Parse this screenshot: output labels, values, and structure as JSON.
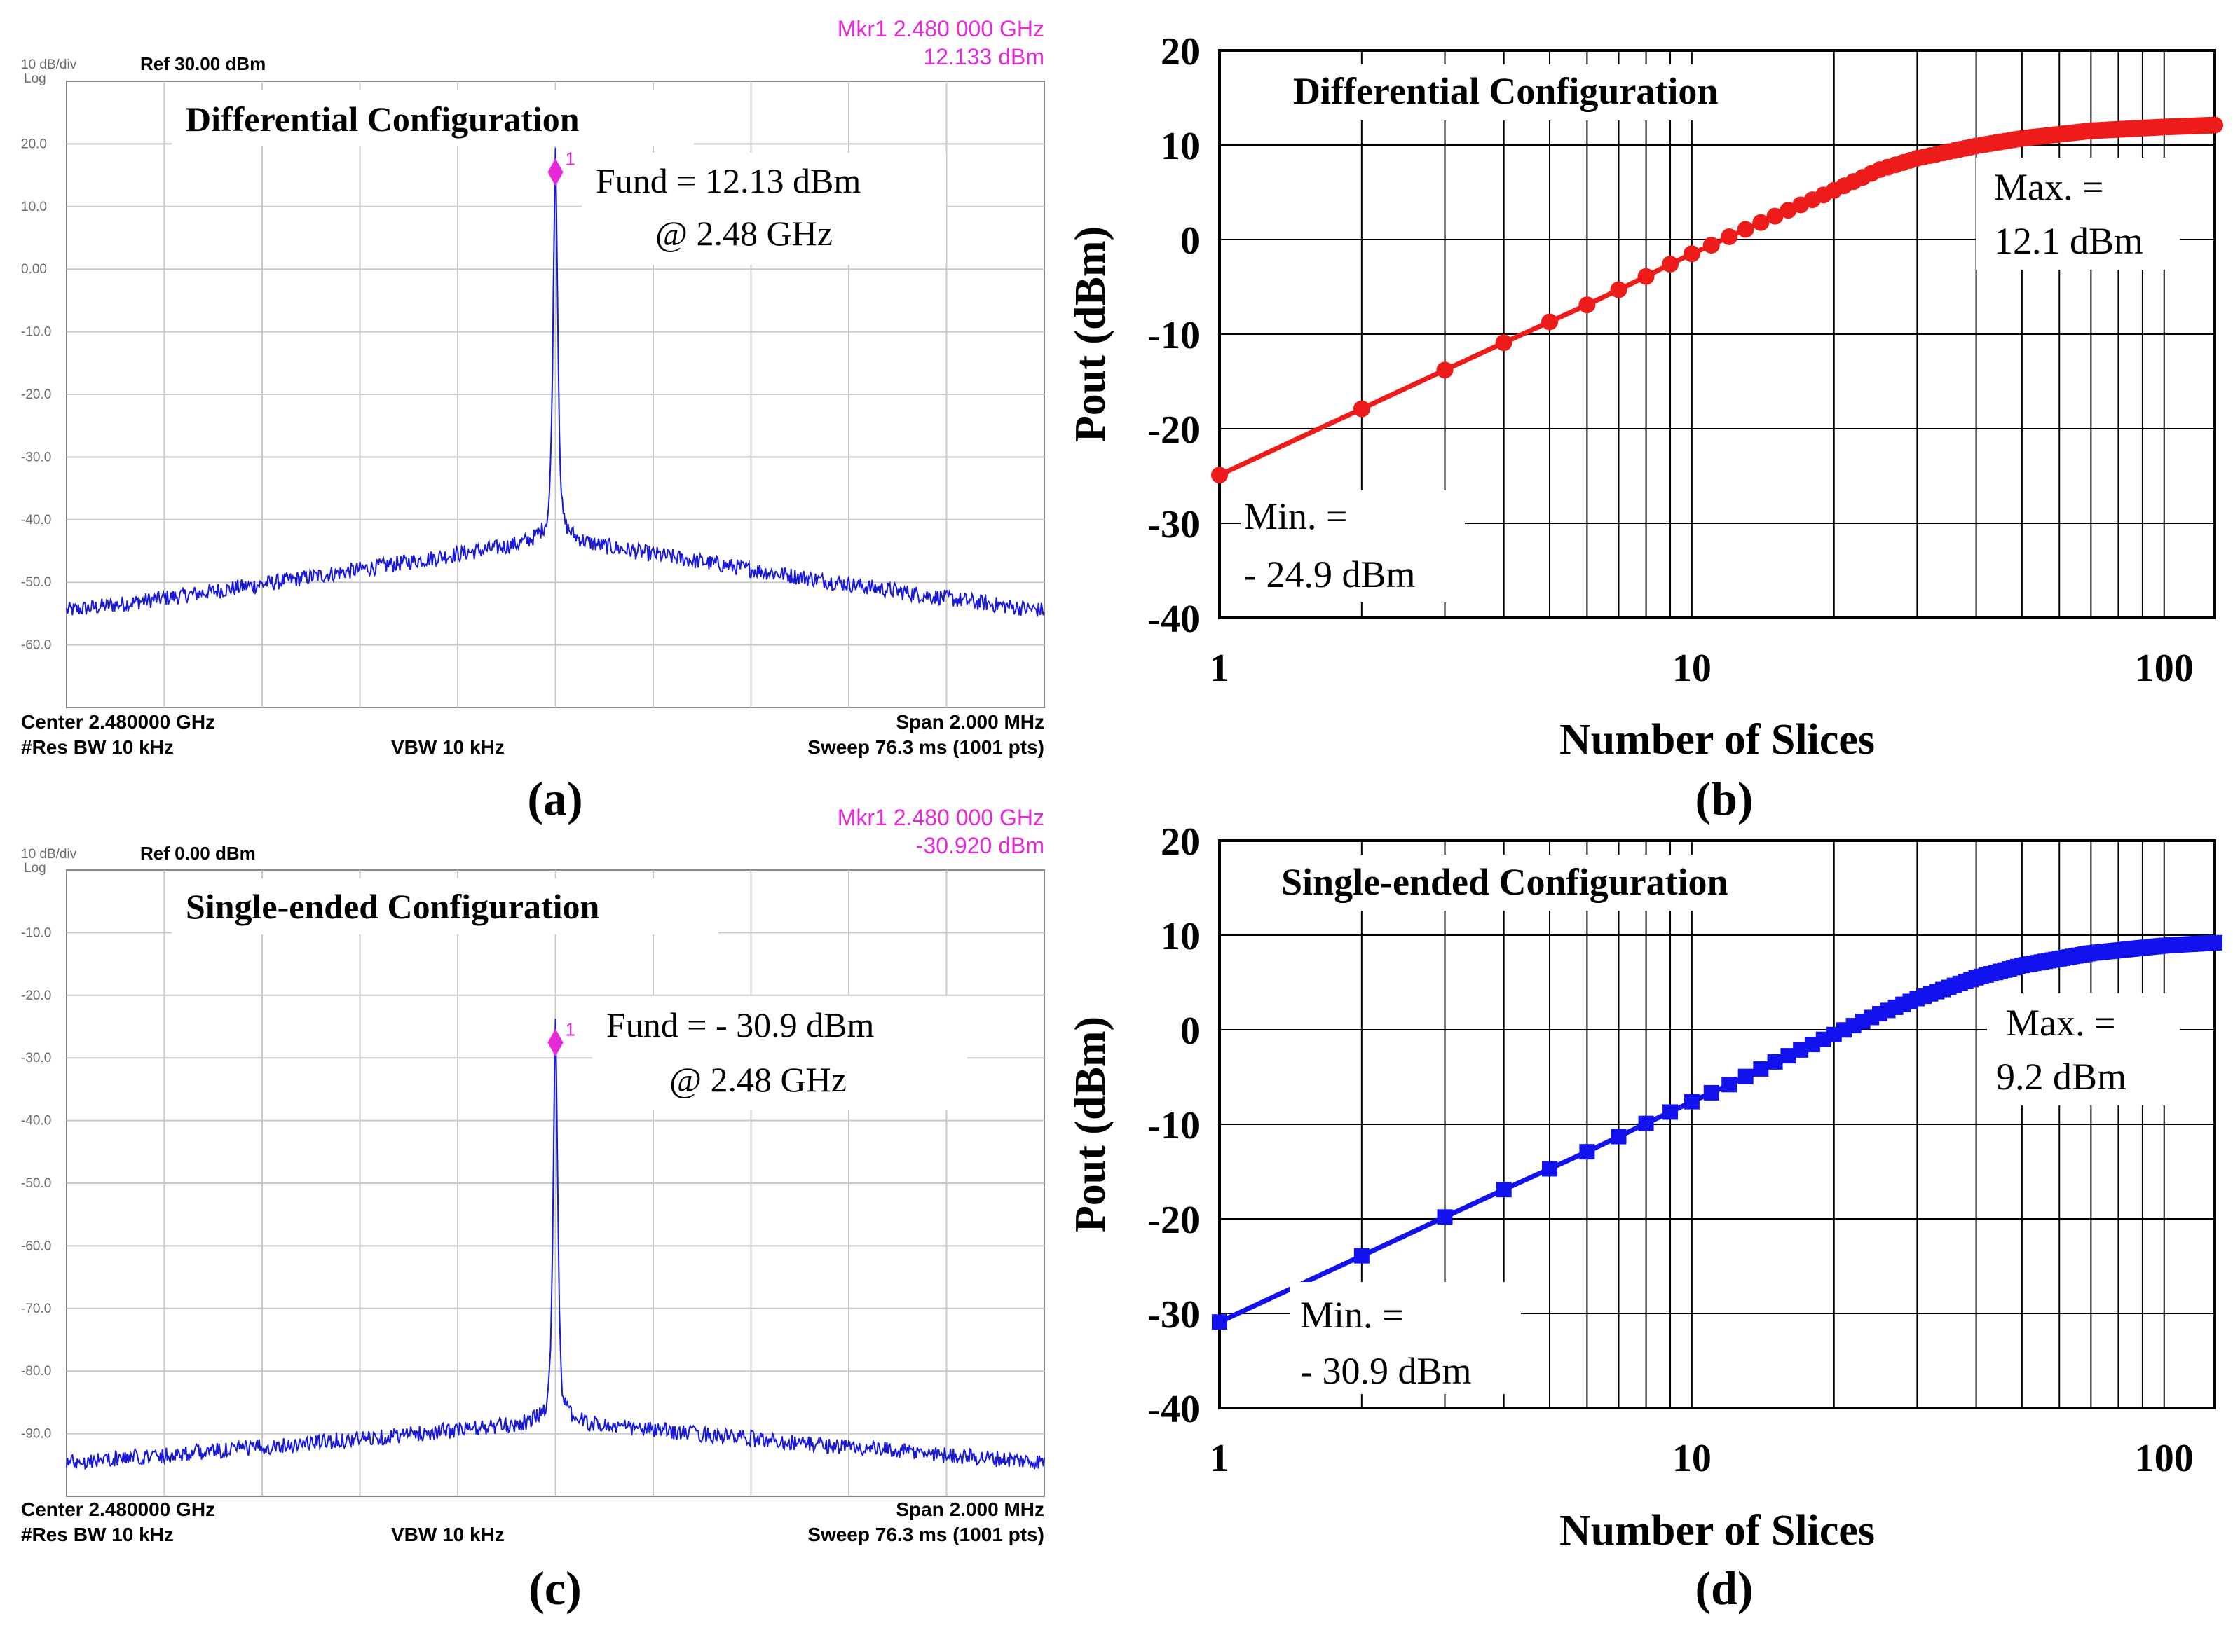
{
  "figure": {
    "colors": {
      "trace": "#1a1ad6",
      "marker": "#e628d6",
      "red_series": "#ee1b1b",
      "blue_series": "#1212ee",
      "grid": "#c8c8c8",
      "plot_grid": "#000000"
    }
  },
  "chart_data": [
    {
      "panel": "(a)",
      "type": "line",
      "title": "Differential Configuration",
      "scale_label": "10 dB/div",
      "log_label": "Log",
      "ref_label": "Ref 30.00 dBm",
      "marker_line1": "Mkr1 2.480 000 GHz",
      "marker_line2": "12.133 dBm",
      "marker_id": "1",
      "fund_line1": "Fund = 12.13 dBm",
      "fund_line2": "@ 2.48 GHz",
      "y_ticks": [
        "20.0",
        "10.0",
        "0.00",
        "-10.0",
        "-20.0",
        "-30.0",
        "-40.0",
        "-50.0",
        "-60.0"
      ],
      "ylim": [
        -70,
        30
      ],
      "center_label": "Center 2.480000 GHz",
      "span_label": "Span 2.000 MHz",
      "rbw_label": "#Res BW 10 kHz",
      "vbw_label": "VBW 10 kHz",
      "sweep_label": "Sweep  76.3 ms (1001 pts)",
      "peak_dbm": 12.133,
      "edge_left_dbm": -54.5,
      "edge_right_dbm": -54.5,
      "near_peak_dbm": -43
    },
    {
      "panel": "(b)",
      "type": "line",
      "title": "Differential Configuration",
      "xlabel": "Number of Slices",
      "ylabel": "Pout (dBm)",
      "x_ticks": [
        "1",
        "10",
        "100"
      ],
      "y_ticks": [
        "20",
        "10",
        "0",
        "-10",
        "-20",
        "-30",
        "-40"
      ],
      "xlim": [
        1,
        128
      ],
      "ylim": [
        -40,
        20
      ],
      "min_line1": "Min. =",
      "min_line2": "-  24.9 dBm",
      "max_line1": "Max. =",
      "max_line2": "12.1 dBm",
      "marker": "circle",
      "series_color": "#ee1b1b",
      "min_dbm": -24.9,
      "max_dbm": 12.1,
      "anchors_x": [
        1,
        2,
        3,
        4,
        5,
        6,
        7,
        8,
        9,
        10,
        11,
        12,
        14,
        16,
        20,
        25,
        30,
        40,
        50,
        70,
        100,
        128
      ],
      "anchors_y": [
        -24.9,
        -17.9,
        -13.8,
        -10.9,
        -8.7,
        -6.9,
        -5.3,
        -3.9,
        -2.6,
        -1.5,
        -0.6,
        0.3,
        1.8,
        3.1,
        5.2,
        7.4,
        8.6,
        9.9,
        10.7,
        11.5,
        11.9,
        12.1
      ]
    },
    {
      "panel": "(c)",
      "type": "line",
      "title": "Single-ended Configuration",
      "scale_label": "10 dB/div",
      "log_label": "Log",
      "ref_label": "Ref 0.00 dBm",
      "marker_line1": "Mkr1 2.480 000 GHz",
      "marker_line2": "-30.920 dBm",
      "marker_id": "1",
      "fund_line1": "Fund = -  30.9 dBm",
      "fund_line2": "@ 2.48 GHz",
      "y_ticks": [
        "-10.0",
        "-20.0",
        "-30.0",
        "-40.0",
        "-50.0",
        "-60.0",
        "-70.0",
        "-80.0",
        "-90.0"
      ],
      "ylim": [
        -100,
        0
      ],
      "center_label": "Center 2.480000 GHz",
      "span_label": "Span 2.000 MHz",
      "rbw_label": "#Res BW 10 kHz",
      "vbw_label": "VBW 10 kHz",
      "sweep_label": "Sweep  76.3 ms (1001 pts)",
      "peak_dbm": -30.92,
      "edge_left_dbm": -94.5,
      "edge_right_dbm": -94.5,
      "near_peak_dbm": -88
    },
    {
      "panel": "(d)",
      "type": "line",
      "title": "Single-ended Configuration",
      "xlabel": "Number of Slices",
      "ylabel": "Pout (dBm)",
      "x_ticks": [
        "1",
        "10",
        "100"
      ],
      "y_ticks": [
        "20",
        "10",
        "0",
        "-10",
        "-20",
        "-30",
        "-40"
      ],
      "xlim": [
        1,
        128
      ],
      "ylim": [
        -40,
        20
      ],
      "min_line1": "Min. =",
      "min_line2": "-  30.9 dBm",
      "max_line1": "Max. =",
      "max_line2": "9.2 dBm",
      "marker": "square",
      "series_color": "#1212ee",
      "min_dbm": -30.9,
      "max_dbm": 9.2,
      "anchors_x": [
        1,
        2,
        3,
        4,
        5,
        6,
        7,
        8,
        9,
        10,
        12,
        15,
        20,
        25,
        30,
        40,
        50,
        70,
        100,
        128
      ],
      "anchors_y": [
        -30.9,
        -23.9,
        -19.8,
        -16.9,
        -14.7,
        -12.9,
        -11.3,
        -9.9,
        -8.7,
        -7.6,
        -5.8,
        -3.4,
        -0.5,
        1.7,
        3.3,
        5.5,
        6.8,
        8.1,
        8.9,
        9.2
      ]
    }
  ]
}
